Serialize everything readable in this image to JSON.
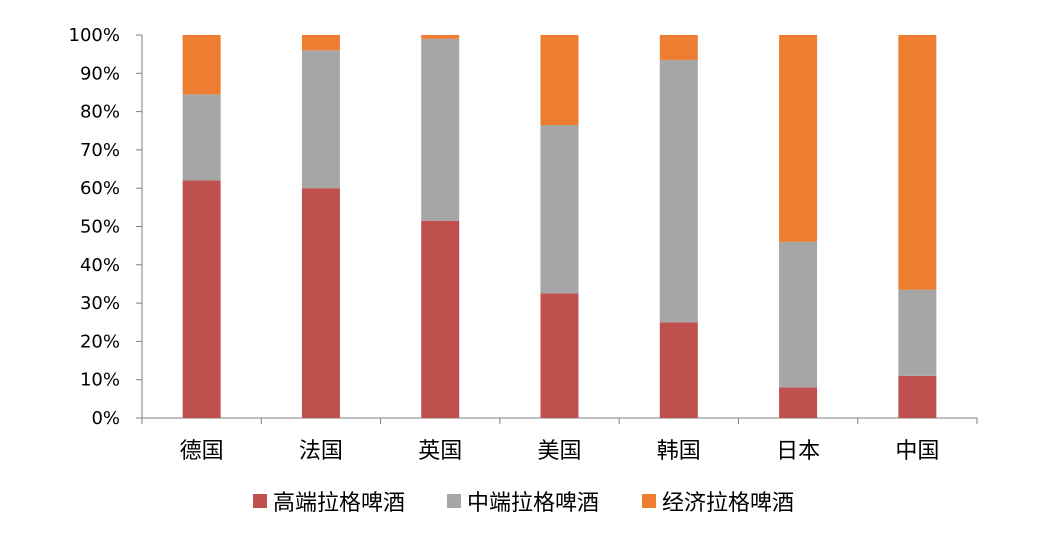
{
  "chart_data": {
    "type": "bar",
    "stacked": true,
    "categories": [
      "德国",
      "法国",
      "英国",
      "美国",
      "韩国",
      "日本",
      "中国"
    ],
    "series": [
      {
        "name": "高端拉格啤酒",
        "color": "#c0504d",
        "values": [
          62,
          60,
          51.5,
          32.5,
          25,
          8,
          11
        ]
      },
      {
        "name": "中端拉格啤酒",
        "color": "#a6a6a6",
        "values": [
          22.5,
          36,
          47.5,
          44,
          68.5,
          38,
          22.5
        ]
      },
      {
        "name": "经济拉格啤酒",
        "color": "#ed7d31",
        "values": [
          15.5,
          4,
          1,
          23.5,
          6.5,
          54,
          66.5
        ]
      }
    ],
    "y_ticks": [
      "0%",
      "10%",
      "20%",
      "30%",
      "40%",
      "50%",
      "60%",
      "70%",
      "80%",
      "90%",
      "100%"
    ],
    "ylim": [
      0,
      100
    ],
    "legend_position": "bottom",
    "grid": false
  }
}
